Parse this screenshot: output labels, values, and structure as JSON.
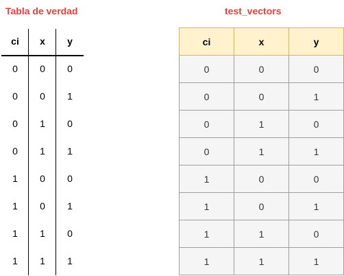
{
  "left": {
    "title": "Tabla de verdad",
    "headers": [
      "ci",
      "x",
      "y"
    ],
    "rows": [
      [
        "0",
        "0",
        "0"
      ],
      [
        "0",
        "0",
        "1"
      ],
      [
        "0",
        "1",
        "0"
      ],
      [
        "0",
        "1",
        "1"
      ],
      [
        "1",
        "0",
        "0"
      ],
      [
        "1",
        "0",
        "1"
      ],
      [
        "1",
        "1",
        "0"
      ],
      [
        "1",
        "1",
        "1"
      ]
    ]
  },
  "right": {
    "title": "test_vectors",
    "headers": [
      "ci",
      "x",
      "y"
    ],
    "rows": [
      [
        "0",
        "0",
        "0"
      ],
      [
        "0",
        "0",
        "1"
      ],
      [
        "0",
        "1",
        "0"
      ],
      [
        "0",
        "1",
        "1"
      ],
      [
        "1",
        "0",
        "0"
      ],
      [
        "1",
        "0",
        "1"
      ],
      [
        "1",
        "1",
        "0"
      ],
      [
        "1",
        "1",
        "1"
      ]
    ]
  },
  "colors": {
    "title": "#ee3b3b",
    "header_fill": "#fff2cc",
    "header_border": "#d6b656",
    "cell_fill": "#f5f5f5",
    "cell_border": "#9e9e9e"
  }
}
